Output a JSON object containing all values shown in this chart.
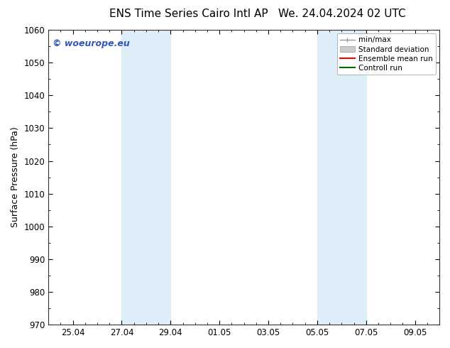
{
  "title_left": "ENS Time Series Cairo Intl AP",
  "title_right": "We. 24.04.2024 02 UTC",
  "ylabel": "Surface Pressure (hPa)",
  "ylim": [
    970,
    1060
  ],
  "yticks": [
    970,
    980,
    990,
    1000,
    1010,
    1020,
    1030,
    1040,
    1050,
    1060
  ],
  "x_min": 0,
  "x_max": 16,
  "xtick_labels": [
    "25.04",
    "27.04",
    "29.04",
    "01.05",
    "03.05",
    "05.05",
    "07.05",
    "09.05"
  ],
  "xtick_positions": [
    1,
    3,
    5,
    7,
    9,
    11,
    13,
    15
  ],
  "shaded_regions": [
    {
      "x_start": 3,
      "x_end": 5
    },
    {
      "x_start": 11,
      "x_end": 13
    }
  ],
  "shaded_color": "#ddeef8",
  "watermark_text": "© woeurope.eu",
  "watermark_color": "#3355bb",
  "legend_items": [
    {
      "label": "min/max",
      "color": "#999999",
      "type": "minmax"
    },
    {
      "label": "Standard deviation",
      "color": "#cccccc",
      "type": "patch"
    },
    {
      "label": "Ensemble mean run",
      "color": "#ff0000",
      "type": "line"
    },
    {
      "label": "Controll run",
      "color": "#006600",
      "type": "line"
    }
  ],
  "background_color": "#ffffff",
  "tick_label_fontsize": 8.5,
  "axis_label_fontsize": 9,
  "title_fontsize": 11,
  "watermark_fontsize": 9
}
